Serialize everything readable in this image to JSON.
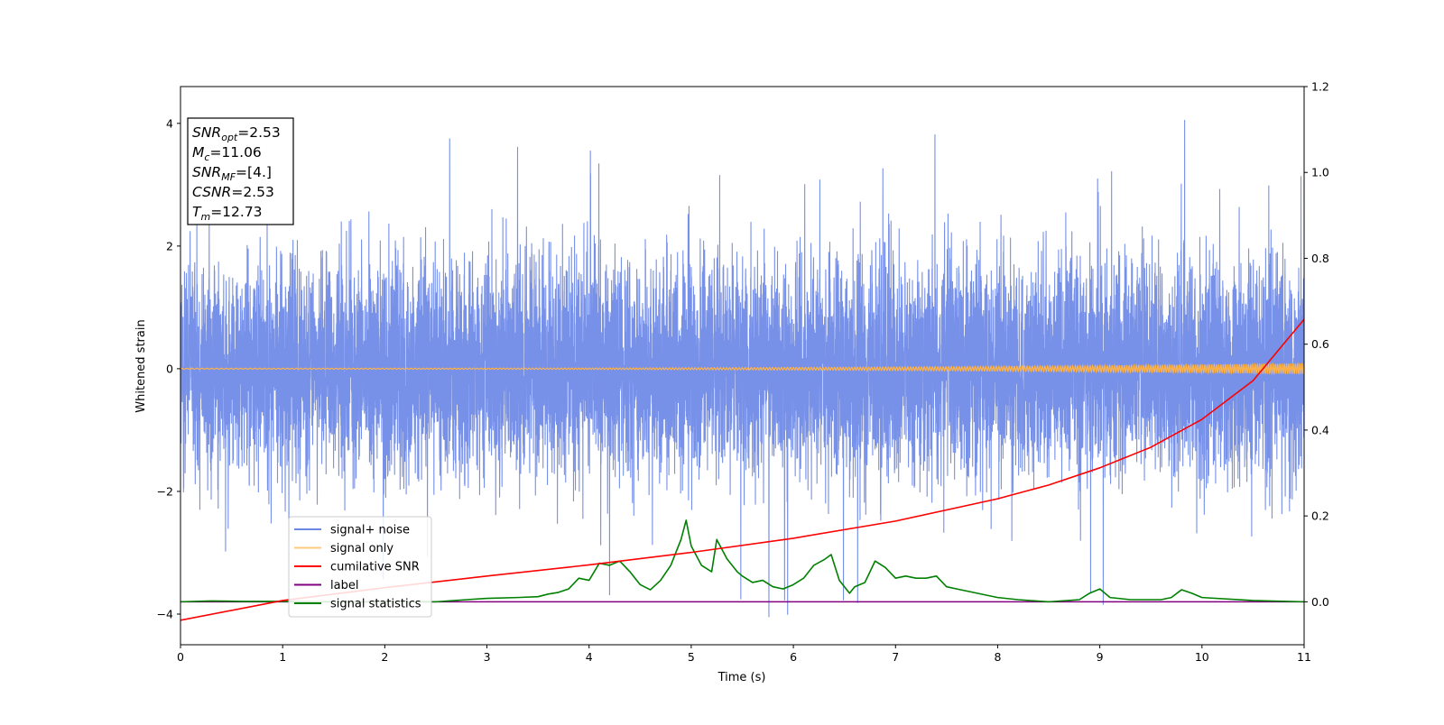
{
  "chart_data": {
    "type": "line",
    "xlabel": "Time (s)",
    "ylabel": "Whitened strain",
    "xlim": [
      0,
      11
    ],
    "ylim_left": [
      -4.5,
      4.6
    ],
    "ylim_right": [
      -0.1,
      1.2
    ],
    "x_ticks": [
      "0",
      "1",
      "2",
      "3",
      "4",
      "5",
      "6",
      "7",
      "8",
      "9",
      "10",
      "11"
    ],
    "y_ticks_left": [
      "−4",
      "−2",
      "0",
      "2",
      "4"
    ],
    "y_ticks_right": [
      "0.0",
      "0.2",
      "0.4",
      "0.6",
      "0.8",
      "1.0",
      "1.2"
    ],
    "grid": false,
    "legend_position": "lower-left",
    "series": [
      {
        "name": "signal+ noise",
        "color": "#6b87e6",
        "axis": "left",
        "description": "dense noise trace, bulk roughly within ±2.5, occasional spikes",
        "approx_envelope": [
          -4.1,
          4.2
        ]
      },
      {
        "name": "signal only",
        "color": "#ffb347",
        "axis": "left",
        "description": "small chirp oscillation near 0, amplitude growing toward the end",
        "amplitude_end": 0.08
      },
      {
        "name": "cumilative SNR",
        "color": "#ff0000",
        "axis": "right",
        "x": [
          0,
          1,
          2,
          3,
          4,
          5,
          6,
          7,
          8,
          8.5,
          9,
          9.5,
          10,
          10.5,
          11
        ],
        "y": [
          -0.043,
          0.003,
          0.033,
          0.06,
          0.086,
          0.115,
          0.148,
          0.188,
          0.24,
          0.272,
          0.312,
          0.36,
          0.425,
          0.515,
          0.658
        ]
      },
      {
        "name": "label",
        "color": "#800080",
        "axis": "right",
        "x": [
          0,
          11
        ],
        "y": [
          0,
          0
        ]
      },
      {
        "name": "signal statistics",
        "color": "#008000",
        "axis": "right",
        "x": [
          0,
          0.3,
          0.6,
          1.0,
          1.5,
          2.0,
          2.5,
          2.8,
          3.0,
          3.3,
          3.5,
          3.6,
          3.7,
          3.8,
          3.9,
          4.0,
          4.1,
          4.2,
          4.3,
          4.4,
          4.5,
          4.6,
          4.7,
          4.8,
          4.9,
          4.95,
          5.0,
          5.1,
          5.2,
          5.25,
          5.35,
          5.45,
          5.5,
          5.6,
          5.7,
          5.8,
          5.9,
          6.0,
          6.1,
          6.2,
          6.3,
          6.37,
          6.45,
          6.55,
          6.6,
          6.7,
          6.8,
          6.9,
          7.0,
          7.1,
          7.2,
          7.3,
          7.4,
          7.5,
          7.6,
          7.8,
          8.0,
          8.2,
          8.5,
          8.8,
          8.9,
          9.0,
          9.1,
          9.3,
          9.6,
          9.7,
          9.8,
          9.9,
          10.0,
          10.5,
          11.0
        ],
        "y": [
          0.0,
          0.002,
          0.001,
          0.001,
          0.0,
          0.0,
          0.0,
          0.005,
          0.008,
          0.01,
          0.012,
          0.018,
          0.022,
          0.03,
          0.055,
          0.05,
          0.09,
          0.085,
          0.095,
          0.07,
          0.04,
          0.028,
          0.05,
          0.085,
          0.145,
          0.19,
          0.13,
          0.085,
          0.07,
          0.145,
          0.1,
          0.07,
          0.06,
          0.045,
          0.05,
          0.035,
          0.03,
          0.04,
          0.055,
          0.085,
          0.098,
          0.11,
          0.05,
          0.02,
          0.035,
          0.045,
          0.095,
          0.08,
          0.055,
          0.06,
          0.055,
          0.055,
          0.06,
          0.035,
          0.03,
          0.02,
          0.01,
          0.005,
          0.0,
          0.005,
          0.02,
          0.03,
          0.01,
          0.005,
          0.005,
          0.01,
          0.028,
          0.02,
          0.01,
          0.003,
          0.0
        ]
      }
    ],
    "annotation": {
      "lines": [
        {
          "name": "SNR",
          "sub": "opt",
          "value": "=2.53"
        },
        {
          "name": "M",
          "sub": "c",
          "value": "=11.06"
        },
        {
          "name": "SNR",
          "sub": "MF",
          "value": "=[4.]"
        },
        {
          "name": "CSNR",
          "sub": "",
          "value": "=2.53"
        },
        {
          "name": "T",
          "sub": "m",
          "value": "=12.73"
        }
      ]
    }
  }
}
